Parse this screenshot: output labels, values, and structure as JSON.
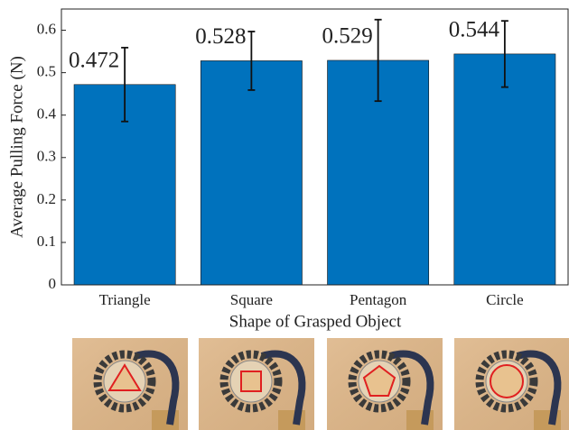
{
  "chart_data": {
    "type": "bar",
    "categories": [
      "Triangle",
      "Square",
      "Pentagon",
      "Circle"
    ],
    "values": [
      0.472,
      0.528,
      0.529,
      0.544
    ],
    "errors": [
      0.087,
      0.069,
      0.096,
      0.078
    ],
    "color": "#0072bd",
    "ylim": [
      0,
      0.65
    ],
    "yticks": [
      0,
      0.1,
      0.2,
      0.3,
      0.4,
      0.5,
      0.6
    ],
    "ylabel": "Average Pulling Force (N)",
    "xlabel": "Shape of Grasped Object"
  }
}
